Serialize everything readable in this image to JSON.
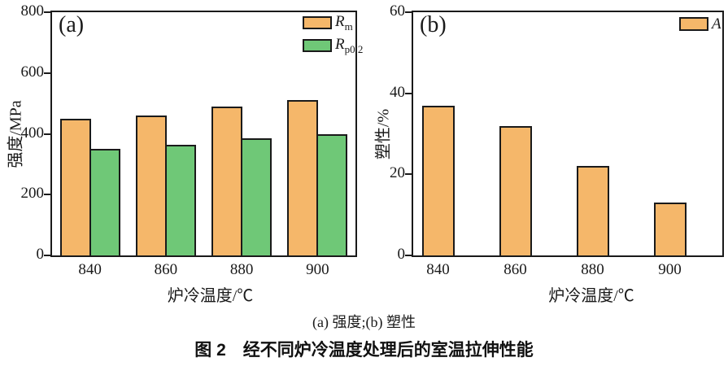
{
  "figure_caption": {
    "sub": "(a) 强度;(b) 塑性",
    "main": "图 2　经不同炉冷温度处理后的室温拉伸性能"
  },
  "colors": {
    "bar_orange": "#F5B76A",
    "bar_green": "#6FC877",
    "axis": "#1a1a1a"
  },
  "chart_data": [
    {
      "type": "bar",
      "panel_label": "(a)",
      "title": "",
      "xlabel": "炉冷温度/℃",
      "ylabel": "强度/MPa",
      "categories": [
        "840",
        "860",
        "880",
        "900"
      ],
      "series": [
        {
          "name": "R",
          "name_sub": "m",
          "color": "#F5B76A",
          "values": [
            450,
            460,
            490,
            510
          ]
        },
        {
          "name": "R",
          "name_sub": "p0.2",
          "color": "#6FC877",
          "values": [
            350,
            365,
            385,
            400
          ]
        }
      ],
      "ylim": [
        0,
        800
      ],
      "yticks": [
        0,
        200,
        400,
        600,
        800
      ],
      "grid": false,
      "legend_position": "top-right"
    },
    {
      "type": "bar",
      "panel_label": "(b)",
      "title": "",
      "xlabel": "炉冷温度/℃",
      "ylabel": "塑性/%",
      "categories": [
        "840",
        "860",
        "880",
        "900"
      ],
      "series": [
        {
          "name": "A",
          "name_sub": "",
          "color": "#F5B76A",
          "values": [
            37,
            32,
            22,
            13
          ]
        }
      ],
      "ylim": [
        0,
        60
      ],
      "yticks": [
        0,
        20,
        40,
        60
      ],
      "grid": false,
      "legend_position": "top-right"
    }
  ]
}
